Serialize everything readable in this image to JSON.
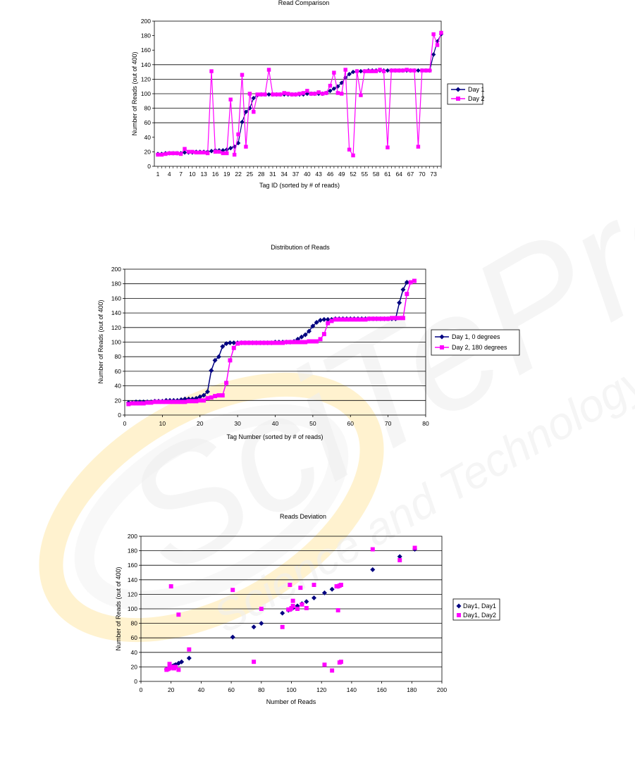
{
  "watermark": {
    "text_1": "SciTePress",
    "text_2": "Science and Technology Publications",
    "colors": [
      "#fff2c8",
      "#ececec"
    ]
  },
  "chart_data": [
    {
      "type": "line",
      "title": "Read Comparison",
      "xlabel": "Tag ID (sorted by # of reads)",
      "ylabel": "Number of Reads (out of 400)",
      "categories": [
        1,
        2,
        3,
        4,
        5,
        6,
        7,
        8,
        9,
        10,
        11,
        12,
        13,
        14,
        15,
        16,
        17,
        18,
        19,
        20,
        21,
        22,
        23,
        24,
        25,
        26,
        27,
        28,
        29,
        30,
        31,
        32,
        33,
        34,
        35,
        36,
        37,
        38,
        39,
        40,
        41,
        42,
        43,
        44,
        45,
        46,
        47,
        48,
        49,
        50,
        51,
        52,
        53,
        54,
        55,
        56,
        57,
        58,
        59,
        60,
        61,
        62,
        63,
        64,
        65,
        66,
        67,
        68,
        69,
        70,
        71,
        72,
        73,
        74,
        75
      ],
      "xtick_labels": [
        "1",
        "4",
        "7",
        "10",
        "13",
        "16",
        "19",
        "22",
        "25",
        "28",
        "31",
        "34",
        "37",
        "40",
        "43",
        "46",
        "49",
        "52",
        "55",
        "58",
        "61",
        "64",
        "67",
        "70",
        "73"
      ],
      "ylim": [
        0,
        200
      ],
      "yticks": [
        0,
        20,
        40,
        60,
        80,
        100,
        120,
        140,
        160,
        180,
        200
      ],
      "grid_lines": [
        60,
        80,
        100,
        120,
        140
      ],
      "legend_position": "right",
      "series": [
        {
          "name": "Day 1",
          "color": "#000080",
          "marker": "diamond",
          "values": [
            17,
            17,
            18,
            18,
            18,
            18,
            18,
            19,
            19,
            19,
            20,
            20,
            20,
            20,
            21,
            22,
            22,
            22,
            23,
            25,
            27,
            32,
            61,
            75,
            80,
            94,
            98,
            99,
            99,
            99,
            99,
            99,
            99,
            99,
            99,
            99,
            99,
            99,
            99,
            100,
            100,
            100,
            100,
            100,
            101,
            104,
            107,
            110,
            115,
            122,
            127,
            130,
            131,
            131,
            131,
            132,
            132,
            132,
            132,
            132,
            132,
            132,
            132,
            132,
            132,
            132,
            132,
            132,
            132,
            132,
            132,
            132,
            154,
            172,
            182
          ]
        },
        {
          "name": "Day 2",
          "color": "#ff00ff",
          "marker": "square",
          "values": [
            16,
            16,
            17,
            18,
            18,
            18,
            17,
            24,
            20,
            20,
            19,
            19,
            19,
            18,
            131,
            20,
            20,
            18,
            18,
            92,
            16,
            44,
            126,
            27,
            100,
            75,
            99,
            99,
            99,
            133,
            99,
            99,
            99,
            101,
            100,
            99,
            99,
            100,
            101,
            104,
            100,
            100,
            102,
            100,
            101,
            111,
            129,
            101,
            100,
            133,
            23,
            15,
            131,
            98,
            131,
            131,
            131,
            131,
            133,
            131,
            26,
            132,
            132,
            132,
            132,
            133,
            132,
            132,
            27,
            132,
            132,
            132,
            182,
            167,
            184
          ]
        }
      ]
    },
    {
      "type": "line",
      "title": "Distribution of Reads",
      "xlabel": "Tag Number (sorted by # of reads)",
      "ylabel": "Number of Reads (out of 400)",
      "xlim": [
        0,
        80
      ],
      "xticks": [
        0,
        10,
        20,
        30,
        40,
        50,
        60,
        70,
        80
      ],
      "ylim": [
        0,
        200
      ],
      "yticks": [
        0,
        20,
        40,
        60,
        80,
        100,
        120,
        140,
        160,
        180,
        200
      ],
      "grid_lines": [
        20,
        40,
        60,
        80,
        100,
        120,
        140,
        160,
        180
      ],
      "legend_position": "right",
      "series": [
        {
          "name": "Day 1, 0 degrees",
          "color": "#000080",
          "marker": "diamond",
          "values": [
            17,
            17,
            18,
            18,
            18,
            18,
            18,
            19,
            19,
            19,
            20,
            20,
            20,
            20,
            21,
            22,
            22,
            22,
            23,
            25,
            27,
            32,
            61,
            75,
            80,
            94,
            98,
            99,
            99,
            99,
            99,
            99,
            99,
            99,
            99,
            99,
            99,
            99,
            99,
            100,
            100,
            100,
            100,
            100,
            101,
            104,
            107,
            110,
            115,
            122,
            127,
            130,
            131,
            131,
            131,
            132,
            132,
            132,
            132,
            132,
            132,
            132,
            132,
            132,
            132,
            132,
            132,
            132,
            132,
            132,
            132,
            132,
            154,
            172,
            182
          ]
        },
        {
          "name": "Day 2, 180 degrees",
          "color": "#ff00ff",
          "marker": "square",
          "values": [
            15,
            16,
            16,
            16,
            16,
            17,
            17,
            18,
            18,
            18,
            18,
            18,
            18,
            18,
            18,
            18,
            19,
            19,
            19,
            20,
            20,
            23,
            24,
            26,
            27,
            27,
            44,
            75,
            92,
            98,
            99,
            99,
            99,
            99,
            99,
            99,
            99,
            99,
            99,
            99,
            99,
            99,
            100,
            100,
            100,
            100,
            100,
            100,
            101,
            101,
            101,
            104,
            111,
            126,
            129,
            131,
            131,
            131,
            131,
            131,
            131,
            131,
            131,
            131,
            132,
            132,
            132,
            132,
            132,
            132,
            133,
            133,
            133,
            133,
            166,
            182,
            184
          ]
        }
      ]
    },
    {
      "type": "scatter",
      "title": "Reads Deviation",
      "xlabel": "Number of Reads",
      "ylabel": "Number of Reads (out of 400)",
      "xlim": [
        0,
        200
      ],
      "xticks": [
        0,
        20,
        40,
        60,
        80,
        100,
        120,
        140,
        160,
        180,
        200
      ],
      "ylim": [
        0,
        200
      ],
      "yticks": [
        0,
        20,
        40,
        60,
        80,
        100,
        120,
        140,
        160,
        180,
        200
      ],
      "grid_lines": [
        20,
        40,
        60,
        80,
        100,
        120,
        140,
        160,
        180
      ],
      "legend_position": "right",
      "series": [
        {
          "name": "Day1, Day1",
          "color": "#000080",
          "marker": "diamond",
          "points": [
            [
              17,
              17
            ],
            [
              18,
              18
            ],
            [
              19,
              19
            ],
            [
              20,
              20
            ],
            [
              21,
              21
            ],
            [
              22,
              22
            ],
            [
              23,
              23
            ],
            [
              25,
              25
            ],
            [
              27,
              27
            ],
            [
              32,
              32
            ],
            [
              61,
              61
            ],
            [
              75,
              75
            ],
            [
              80,
              80
            ],
            [
              94,
              94
            ],
            [
              98,
              98
            ],
            [
              99,
              99
            ],
            [
              100,
              100
            ],
            [
              101,
              101
            ],
            [
              104,
              104
            ],
            [
              107,
              107
            ],
            [
              110,
              110
            ],
            [
              115,
              115
            ],
            [
              122,
              122
            ],
            [
              127,
              127
            ],
            [
              131,
              131
            ],
            [
              132,
              132
            ],
            [
              154,
              154
            ],
            [
              172,
              172
            ],
            [
              182,
              182
            ]
          ]
        },
        {
          "name": "Day1, Day2",
          "color": "#ff00ff",
          "marker": "square",
          "points": [
            [
              17,
              16
            ],
            [
              18,
              17
            ],
            [
              19,
              24
            ],
            [
              19,
              18
            ],
            [
              20,
              19
            ],
            [
              20,
              131
            ],
            [
              21,
              20
            ],
            [
              22,
              18
            ],
            [
              23,
              20
            ],
            [
              25,
              92
            ],
            [
              25,
              16
            ],
            [
              32,
              44
            ],
            [
              61,
              126
            ],
            [
              75,
              27
            ],
            [
              80,
              100
            ],
            [
              94,
              75
            ],
            [
              98,
              99
            ],
            [
              99,
              133
            ],
            [
              99,
              99
            ],
            [
              100,
              101
            ],
            [
              101,
              111
            ],
            [
              101,
              104
            ],
            [
              104,
              100
            ],
            [
              106,
              129
            ],
            [
              107,
              106
            ],
            [
              110,
              101
            ],
            [
              115,
              133
            ],
            [
              122,
              23
            ],
            [
              127,
              15
            ],
            [
              130,
              131
            ],
            [
              131,
              98
            ],
            [
              131,
              131
            ],
            [
              132,
              26
            ],
            [
              132,
              132
            ],
            [
              133,
              27
            ],
            [
              133,
              133
            ],
            [
              154,
              182
            ],
            [
              172,
              167
            ],
            [
              182,
              184
            ]
          ]
        }
      ]
    }
  ]
}
